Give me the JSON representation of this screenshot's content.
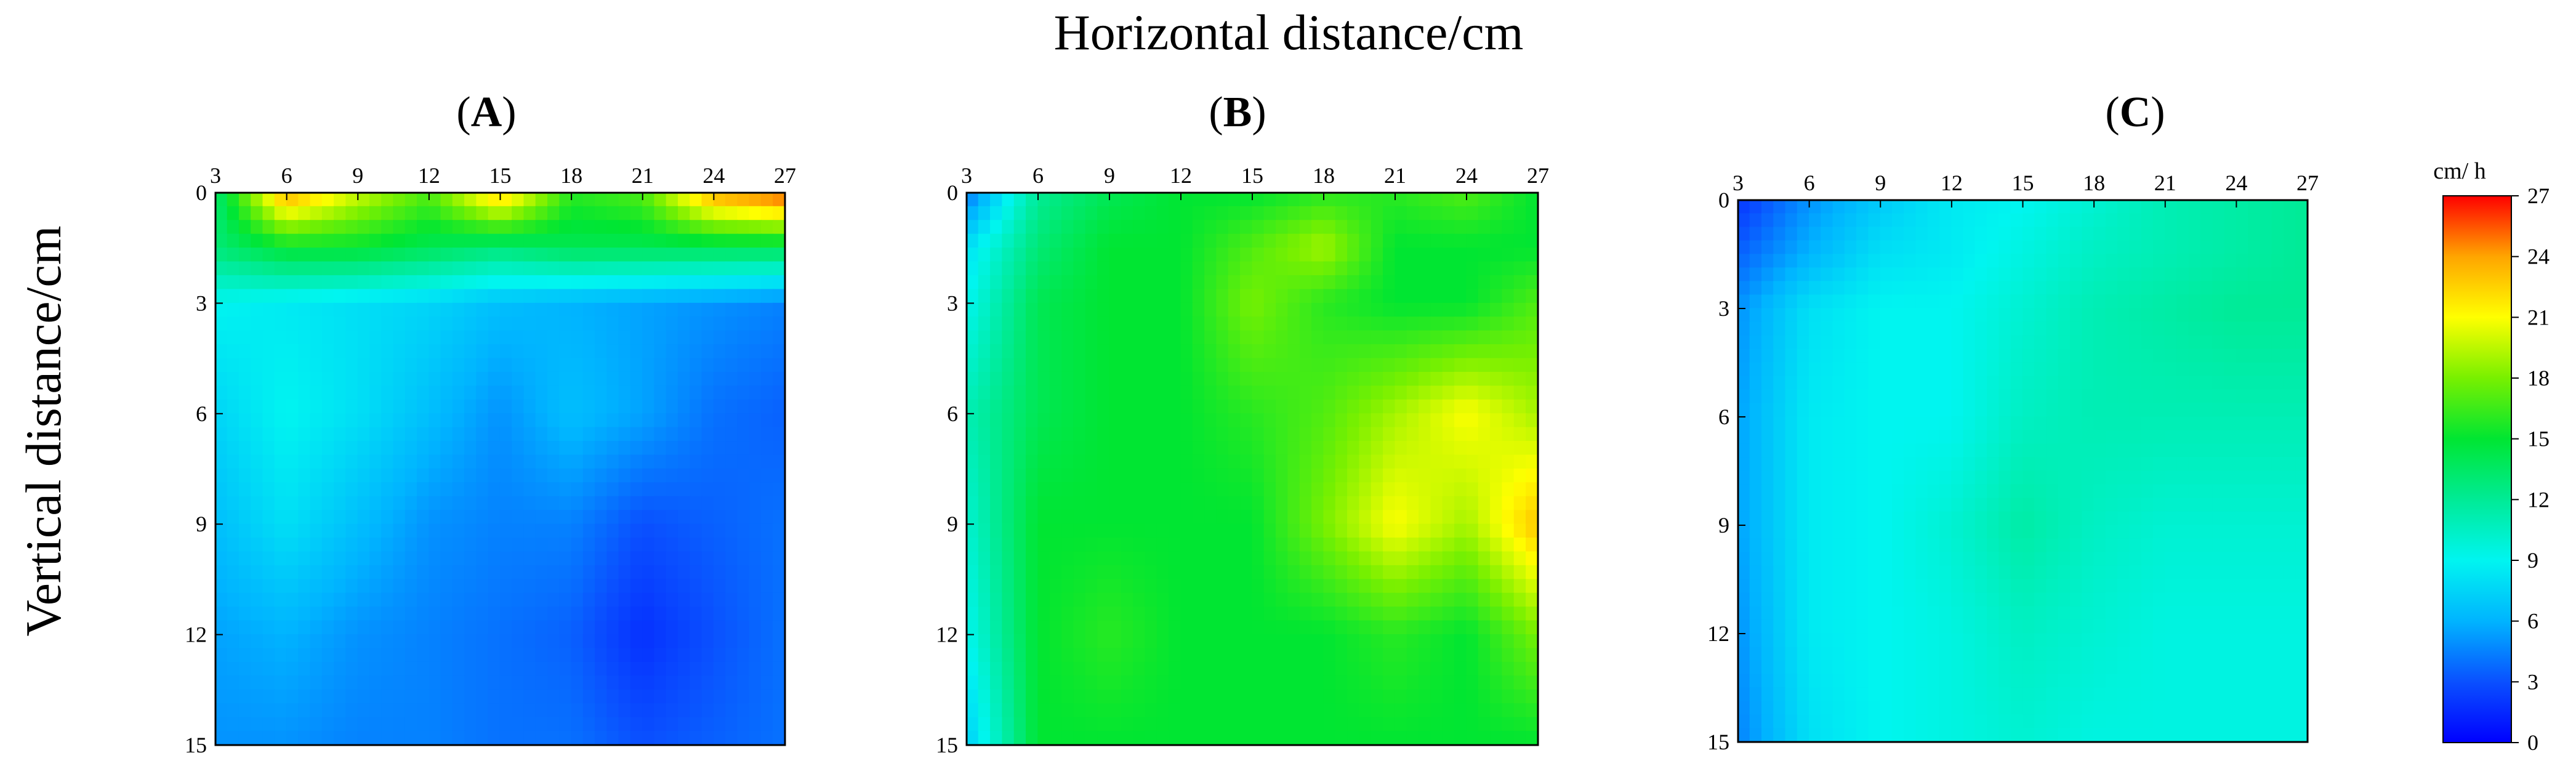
{
  "figure": {
    "x_axis_title": "Horizontal distance/cm",
    "y_axis_title": "Vertical distance/cm"
  },
  "colorbar": {
    "title": "cm/ h",
    "ticks": [
      "0",
      "3",
      "6",
      "9",
      "12",
      "15",
      "18",
      "21",
      "24",
      "27"
    ],
    "range": [
      0,
      27
    ],
    "stops": [
      {
        "value": 0,
        "color": "#0000ff"
      },
      {
        "value": 3,
        "color": "#0a50ff"
      },
      {
        "value": 6,
        "color": "#00b4ff"
      },
      {
        "value": 9,
        "color": "#00f5f0"
      },
      {
        "value": 12,
        "color": "#00eb96"
      },
      {
        "value": 15,
        "color": "#00e632"
      },
      {
        "value": 18,
        "color": "#78f000"
      },
      {
        "value": 21,
        "color": "#ffff00"
      },
      {
        "value": 24,
        "color": "#ffa500"
      },
      {
        "value": 27,
        "color": "#ff0000"
      }
    ]
  },
  "chart_data": [
    {
      "type": "heatmap",
      "panel_label": {
        "open": "(",
        "letter": "A",
        "close": ")"
      },
      "x_ticks": [
        "3",
        "6",
        "9",
        "12",
        "15",
        "18",
        "21",
        "24",
        "27"
      ],
      "y_ticks": [
        "0",
        "3",
        "6",
        "9",
        "12",
        "15"
      ],
      "x": [
        3,
        6,
        9,
        12,
        15,
        18,
        21,
        24,
        27
      ],
      "y": [
        0,
        1.5,
        3,
        6,
        9,
        12,
        15
      ],
      "xlim": [
        3,
        27
      ],
      "ylim": [
        0,
        15
      ],
      "unit": "cm/ h",
      "values": [
        [
          13,
          24,
          20,
          17,
          23,
          16,
          17,
          24,
          26
        ],
        [
          13,
          15,
          15,
          14,
          13,
          14,
          14,
          14,
          14
        ],
        [
          9,
          8.5,
          8,
          7.5,
          6.5,
          6,
          5.5,
          5,
          4.5
        ],
        [
          7.5,
          9,
          8,
          6.5,
          5,
          6.5,
          5.5,
          4,
          3.5
        ],
        [
          6.5,
          8,
          6.5,
          5,
          4.5,
          4.5,
          3,
          3.5,
          4
        ],
        [
          5.5,
          6,
          5,
          4.5,
          4,
          3.5,
          1.8,
          3,
          4
        ],
        [
          5,
          5,
          4.5,
          4.5,
          4,
          4,
          3,
          3.5,
          4
        ]
      ]
    },
    {
      "type": "heatmap",
      "panel_label": {
        "open": "(",
        "letter": "B",
        "close": ")"
      },
      "x_ticks": [
        "3",
        "6",
        "9",
        "12",
        "15",
        "18",
        "21",
        "24",
        "27"
      ],
      "y_ticks": [
        "0",
        "3",
        "6",
        "9",
        "12",
        "15"
      ],
      "x": [
        3,
        6,
        9,
        12,
        15,
        18,
        21,
        24,
        27
      ],
      "y": [
        0,
        1.5,
        3,
        6,
        9,
        12,
        15
      ],
      "xlim": [
        3,
        27
      ],
      "ylim": [
        0,
        15
      ],
      "unit": "cm/ h",
      "values": [
        [
          4,
          12,
          14,
          15,
          15,
          16,
          16,
          17,
          15
        ],
        [
          8,
          13,
          15,
          15,
          17,
          19,
          15,
          15,
          15
        ],
        [
          9,
          14,
          15,
          15,
          18,
          16,
          15,
          15,
          17
        ],
        [
          11,
          14,
          15,
          15,
          16,
          17,
          19,
          21,
          19
        ],
        [
          10,
          15,
          15,
          15,
          15,
          18,
          21,
          19,
          23
        ],
        [
          9,
          15,
          16,
          15,
          15,
          15,
          16,
          15,
          18
        ],
        [
          7,
          15,
          15,
          15,
          15,
          15,
          15,
          15,
          15
        ]
      ]
    },
    {
      "type": "heatmap",
      "panel_label": {
        "open": "(",
        "letter": "C",
        "close": ")"
      },
      "x_ticks": [
        "3",
        "6",
        "9",
        "12",
        "15",
        "18",
        "21",
        "24",
        "27"
      ],
      "y_ticks": [
        "0",
        "3",
        "6",
        "9",
        "12",
        "15"
      ],
      "x": [
        3,
        6,
        9,
        12,
        15,
        18,
        21,
        24,
        27
      ],
      "y": [
        0,
        1.5,
        3,
        6,
        9,
        12,
        15
      ],
      "xlim": [
        3,
        27
      ],
      "ylim": [
        0,
        15
      ],
      "unit": "cm/ h",
      "values": [
        [
          2,
          5,
          7,
          8.5,
          9,
          10,
          11,
          11.5,
          12
        ],
        [
          3.5,
          6,
          8,
          8.5,
          9.5,
          10.5,
          11,
          11.5,
          12
        ],
        [
          5,
          8,
          9,
          9,
          10,
          11,
          11.5,
          12,
          12
        ],
        [
          5.5,
          8.5,
          9,
          9,
          10.5,
          11,
          11,
          11,
          11
        ],
        [
          5.5,
          8.5,
          9,
          10,
          11.5,
          10.5,
          10,
          10,
          10
        ],
        [
          5,
          8.5,
          9,
          9.5,
          10.5,
          10,
          9.5,
          9.5,
          9.5
        ],
        [
          4.5,
          8,
          9,
          9.5,
          10,
          9.5,
          9.5,
          9.5,
          9.5
        ]
      ]
    }
  ]
}
